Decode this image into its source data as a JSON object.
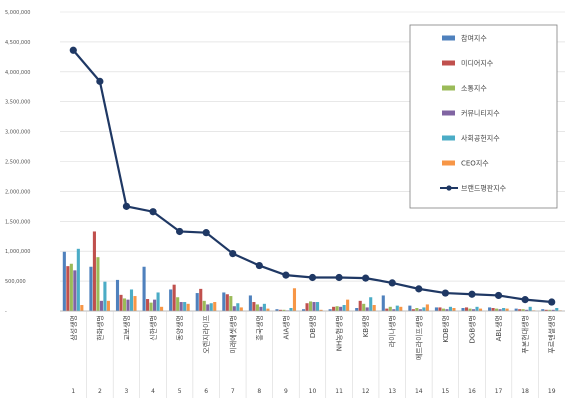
{
  "chart_data": {
    "type": "bar",
    "categories": [
      "삼성생명",
      "한화생명",
      "교보생명",
      "신한생명",
      "동양생명",
      "오렌지라이프",
      "미래에셋생명",
      "흥국생명",
      "AIA생명",
      "DB생명",
      "NH농협생명",
      "KB생명",
      "라이나생명",
      "메트라이프생명",
      "KDB생명",
      "DGB생명",
      "ABL생명",
      "푸본현대생명",
      "푸르덴셜생명"
    ],
    "numbers": [
      "1",
      "2",
      "3",
      "4",
      "5",
      "6",
      "7",
      "8",
      "9",
      "10",
      "11",
      "12",
      "13",
      "14",
      "15",
      "16",
      "17",
      "18",
      "19"
    ],
    "ylim": [
      0,
      5000000
    ],
    "yticks": [
      "-",
      "500,000",
      "1,000,000",
      "1,500,000",
      "2,000,000",
      "2,500,000",
      "3,000,000",
      "3,500,000",
      "4,000,000",
      "4,500,000",
      "5,000,000"
    ],
    "grid": true,
    "legend_position": "top-right",
    "series": [
      {
        "name": "참여지수",
        "kind": "bar",
        "color": "#4f81bd",
        "values": [
          990000,
          740000,
          520000,
          740000,
          360000,
          300000,
          310000,
          260000,
          30000,
          30000,
          30000,
          50000,
          260000,
          90000,
          60000,
          50000,
          60000,
          40000,
          30000
        ]
      },
      {
        "name": "미디어지수",
        "kind": "bar",
        "color": "#c0504d",
        "values": [
          750000,
          1330000,
          270000,
          200000,
          440000,
          370000,
          280000,
          150000,
          20000,
          130000,
          70000,
          170000,
          40000,
          30000,
          60000,
          60000,
          50000,
          30000,
          20000
        ]
      },
      {
        "name": "소통지수",
        "kind": "bar",
        "color": "#9bbb59",
        "values": [
          790000,
          900000,
          210000,
          140000,
          230000,
          170000,
          250000,
          110000,
          20000,
          160000,
          80000,
          120000,
          70000,
          50000,
          40000,
          40000,
          40000,
          30000,
          20000
        ]
      },
      {
        "name": "커뮤니티지수",
        "kind": "bar",
        "color": "#8064a2",
        "values": [
          680000,
          170000,
          190000,
          190000,
          150000,
          110000,
          80000,
          70000,
          10000,
          150000,
          70000,
          60000,
          30000,
          30000,
          30000,
          30000,
          30000,
          20000,
          20000
        ]
      },
      {
        "name": "사회공헌지수",
        "kind": "bar",
        "color": "#4bacc6",
        "values": [
          1040000,
          490000,
          360000,
          310000,
          150000,
          130000,
          130000,
          120000,
          50000,
          150000,
          100000,
          230000,
          90000,
          60000,
          70000,
          70000,
          50000,
          70000,
          50000
        ]
      },
      {
        "name": "CEO지수",
        "kind": "bar",
        "color": "#f79646",
        "values": [
          100000,
          170000,
          250000,
          70000,
          120000,
          150000,
          60000,
          40000,
          380000,
          20000,
          190000,
          100000,
          70000,
          110000,
          50000,
          40000,
          40000,
          10000,
          10000
        ]
      },
      {
        "name": "브랜드평판지수",
        "kind": "line",
        "color": "#1f3864",
        "values": [
          4360000,
          3840000,
          1750000,
          1660000,
          1330000,
          1310000,
          960000,
          760000,
          600000,
          560000,
          560000,
          550000,
          470000,
          370000,
          300000,
          280000,
          260000,
          190000,
          150000
        ]
      }
    ]
  }
}
